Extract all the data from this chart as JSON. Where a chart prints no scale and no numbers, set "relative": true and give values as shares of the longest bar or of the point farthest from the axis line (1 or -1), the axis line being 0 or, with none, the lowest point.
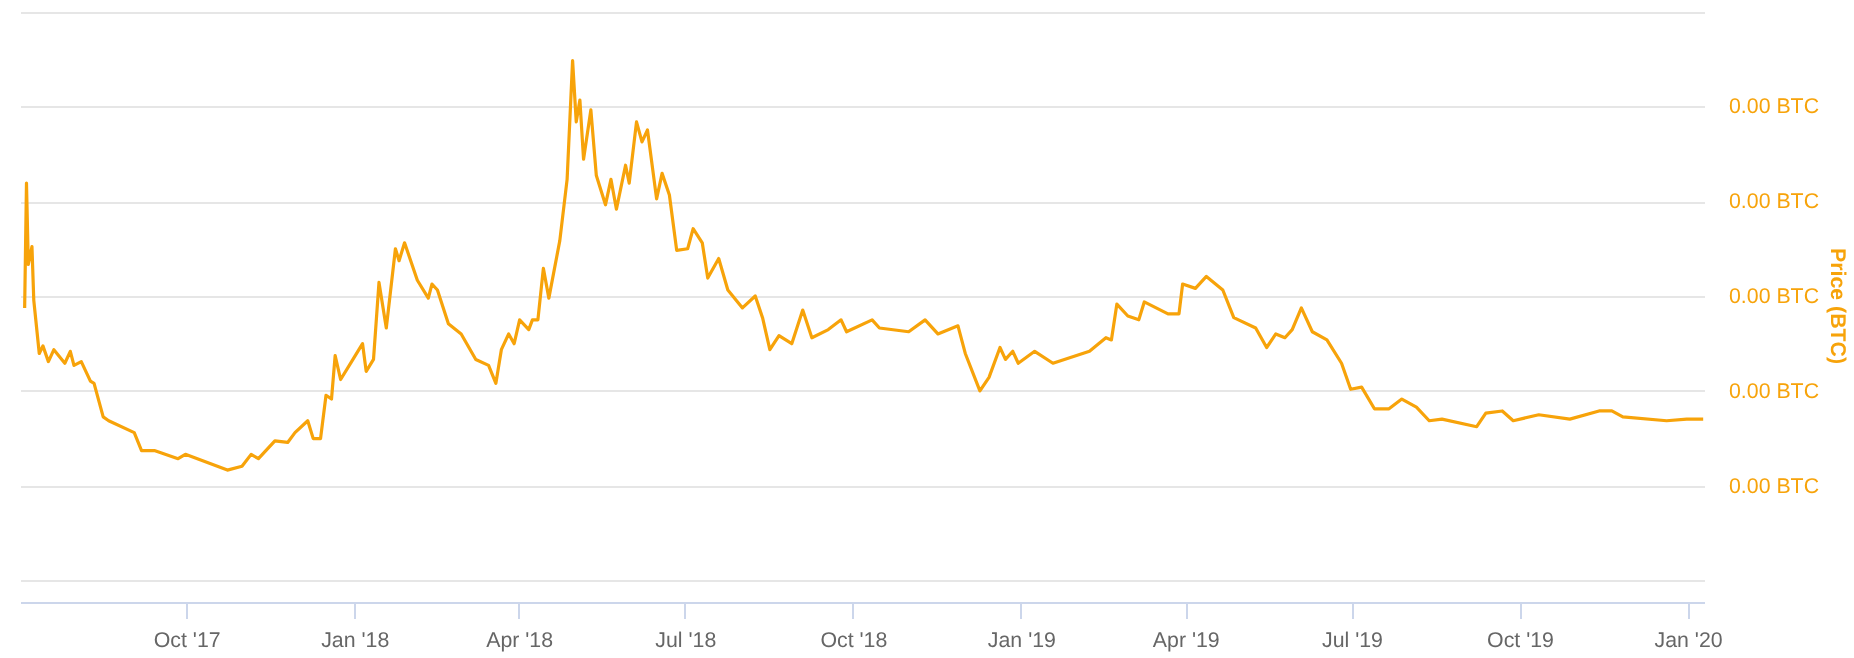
{
  "chart_data": {
    "type": "line",
    "ylabel": "Price (BTC)",
    "relative": true,
    "grid": "y",
    "xlim": [
      "2017-07-02",
      "2020-01-10"
    ],
    "xticks": [
      {
        "value": "2017-10-01",
        "label": "Oct '17"
      },
      {
        "value": "2018-01-01",
        "label": "Jan '18"
      },
      {
        "value": "2018-04-01",
        "label": "Apr '18"
      },
      {
        "value": "2018-07-01",
        "label": "Jul '18"
      },
      {
        "value": "2018-10-01",
        "label": "Oct '18"
      },
      {
        "value": "2019-01-01",
        "label": "Jan '19"
      },
      {
        "value": "2019-04-01",
        "label": "Apr '19"
      },
      {
        "value": "2019-07-01",
        "label": "Jul '19"
      },
      {
        "value": "2019-10-01",
        "label": "Oct '19"
      },
      {
        "value": "2020-01-01",
        "label": "Jan '20"
      }
    ],
    "annotations": [
      "0.00 BTC",
      "0.00 BTC",
      "0.00 BTC",
      "0.00 BTC",
      "0.00 BTC"
    ],
    "x": [
      "2017-07-04",
      "2017-07-05",
      "2017-07-06",
      "2017-07-08",
      "2017-07-09",
      "2017-07-12",
      "2017-07-14",
      "2017-07-17",
      "2017-07-20",
      "2017-07-26",
      "2017-07-29",
      "2017-07-31",
      "2017-08-04",
      "2017-08-09",
      "2017-08-11",
      "2017-08-16",
      "2017-08-19",
      "2017-09-02",
      "2017-09-06",
      "2017-09-13",
      "2017-09-26",
      "2017-09-30",
      "2017-10-23",
      "2017-10-31",
      "2017-11-05",
      "2017-11-09",
      "2017-11-18",
      "2017-11-25",
      "2017-11-29",
      "2017-12-06",
      "2017-12-09",
      "2017-12-13",
      "2017-12-16",
      "2017-12-19",
      "2017-12-21",
      "2017-12-24",
      "2017-12-30",
      "2018-01-05",
      "2018-01-07",
      "2018-01-11",
      "2018-01-14",
      "2018-01-18",
      "2018-01-23",
      "2018-01-25",
      "2018-01-28",
      "2018-02-04",
      "2018-02-10",
      "2018-02-12",
      "2018-02-15",
      "2018-02-21",
      "2018-02-28",
      "2018-03-08",
      "2018-03-15",
      "2018-03-19",
      "2018-03-22",
      "2018-03-26",
      "2018-03-29",
      "2018-04-01",
      "2018-04-06",
      "2018-04-08",
      "2018-04-11",
      "2018-04-14",
      "2018-04-17",
      "2018-04-23",
      "2018-04-27",
      "2018-04-30",
      "2018-05-02",
      "2018-05-04",
      "2018-05-06",
      "2018-05-10",
      "2018-05-13",
      "2018-05-18",
      "2018-05-21",
      "2018-05-24",
      "2018-05-29",
      "2018-05-31",
      "2018-06-04",
      "2018-06-07",
      "2018-06-10",
      "2018-06-15",
      "2018-06-18",
      "2018-06-22",
      "2018-06-26",
      "2018-07-02",
      "2018-07-05",
      "2018-07-10",
      "2018-07-13",
      "2018-07-19",
      "2018-07-24",
      "2018-08-01",
      "2018-08-08",
      "2018-08-12",
      "2018-08-16",
      "2018-08-21",
      "2018-08-28",
      "2018-09-03",
      "2018-09-08",
      "2018-09-17",
      "2018-09-24",
      "2018-09-27",
      "2018-10-11",
      "2018-10-15",
      "2018-10-31",
      "2018-11-09",
      "2018-11-16",
      "2018-11-27",
      "2018-12-01",
      "2018-12-09",
      "2018-12-14",
      "2018-12-20",
      "2018-12-23",
      "2018-12-27",
      "2018-12-30",
      "2019-01-08",
      "2019-01-18",
      "2019-01-28",
      "2019-02-07",
      "2019-02-16",
      "2019-02-19",
      "2019-02-22",
      "2019-02-28",
      "2019-03-06",
      "2019-03-09",
      "2019-03-22",
      "2019-03-28",
      "2019-03-30",
      "2019-04-06",
      "2019-04-12",
      "2019-04-21",
      "2019-04-27",
      "2019-05-09",
      "2019-05-15",
      "2019-05-20",
      "2019-05-25",
      "2019-05-29",
      "2019-06-03",
      "2019-06-09",
      "2019-06-17",
      "2019-06-25",
      "2019-06-30",
      "2019-07-06",
      "2019-07-13",
      "2019-07-21",
      "2019-07-28",
      "2019-08-05",
      "2019-08-12",
      "2019-08-19",
      "2019-09-07",
      "2019-09-12",
      "2019-09-21",
      "2019-09-27",
      "2019-10-11",
      "2019-10-28",
      "2019-11-13",
      "2019-11-20",
      "2019-11-26",
      "2019-12-20",
      "2019-12-31",
      "2020-01-09"
    ],
    "series": [
      {
        "color": "#f7a30a",
        "values": [
          0.544,
          0.774,
          0.624,
          0.657,
          0.558,
          0.46,
          0.474,
          0.445,
          0.467,
          0.442,
          0.464,
          0.438,
          0.445,
          0.409,
          0.405,
          0.343,
          0.336,
          0.314,
          0.281,
          0.281,
          0.266,
          0.274,
          0.245,
          0.252,
          0.274,
          0.266,
          0.299,
          0.296,
          0.314,
          0.336,
          0.303,
          0.303,
          0.383,
          0.376,
          0.456,
          0.412,
          0.445,
          0.478,
          0.427,
          0.449,
          0.591,
          0.507,
          0.653,
          0.631,
          0.664,
          0.595,
          0.562,
          0.588,
          0.577,
          0.515,
          0.496,
          0.449,
          0.438,
          0.405,
          0.467,
          0.496,
          0.478,
          0.522,
          0.504,
          0.522,
          0.522,
          0.617,
          0.562,
          0.668,
          0.781,
          1.0,
          0.887,
          0.927,
          0.818,
          0.909,
          0.788,
          0.734,
          0.781,
          0.726,
          0.807,
          0.774,
          0.887,
          0.85,
          0.872,
          0.745,
          0.792,
          0.752,
          0.65,
          0.653,
          0.69,
          0.664,
          0.599,
          0.635,
          0.577,
          0.544,
          0.566,
          0.526,
          0.467,
          0.493,
          0.478,
          0.54,
          0.489,
          0.504,
          0.522,
          0.5,
          0.522,
          0.507,
          0.5,
          0.522,
          0.496,
          0.511,
          0.46,
          0.391,
          0.416,
          0.471,
          0.449,
          0.464,
          0.442,
          0.464,
          0.442,
          0.453,
          0.464,
          0.489,
          0.485,
          0.551,
          0.529,
          0.522,
          0.555,
          0.533,
          0.533,
          0.588,
          0.58,
          0.602,
          0.577,
          0.526,
          0.507,
          0.471,
          0.496,
          0.489,
          0.504,
          0.544,
          0.5,
          0.485,
          0.442,
          0.394,
          0.398,
          0.358,
          0.358,
          0.376,
          0.361,
          0.336,
          0.339,
          0.325,
          0.35,
          0.354,
          0.336,
          0.347,
          0.339,
          0.354,
          0.354,
          0.343,
          0.336,
          0.339,
          0.339
        ]
      }
    ]
  }
}
